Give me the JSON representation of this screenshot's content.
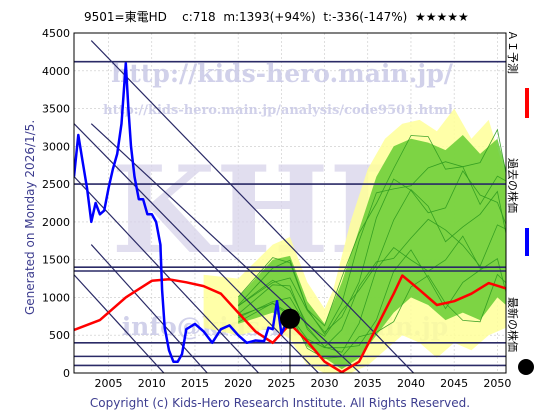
{
  "header": {
    "code_name": "9501=東電HD",
    "current": "c:718",
    "mid": "m:1393(+94%)",
    "target": "t:-336(-147%)",
    "stars": "★★★★★"
  },
  "watermarks": {
    "url_main": "http://kids-hero.main.jp/",
    "url_analysis": "http://kids-hero.main.jp/analysis/code9501.html",
    "logo": "KHR",
    "info": "info@kids-hero.main.jp"
  },
  "side_label": "Generated on Monday 2026/1/5.",
  "footer": "Copyright (c) Kids-Hero Research Institute. All Rights Reserved.",
  "legend": {
    "ai_label": "ＡＩ予測",
    "past_label": "過去の株価",
    "latest_label": "最新の株価"
  },
  "colors": {
    "past_price": "#0000ff",
    "ai_forecast": "#ff0000",
    "forecast_band_outer": "#ffff99",
    "forecast_band_inner": "#66cc33",
    "trend_lines": "#2a2a66",
    "latest_marker": "#000000"
  },
  "chart_data": {
    "type": "line",
    "x_range": [
      2001,
      2051
    ],
    "y_range": [
      0,
      4500
    ],
    "x_ticks": [
      2005,
      2010,
      2015,
      2020,
      2025,
      2030,
      2035,
      2040,
      2045,
      2050
    ],
    "y_ticks": [
      0,
      500,
      1000,
      1500,
      2000,
      2500,
      3000,
      3500,
      4000,
      4500
    ],
    "grid": true,
    "horizontal_levels": [
      4120,
      2500,
      1400,
      1350,
      400,
      220,
      100
    ],
    "latest_point": {
      "x": 2026.0,
      "y": 718
    },
    "series": [
      {
        "name": "過去の株価",
        "x": [
          2001.0,
          2001.5,
          2002.0,
          2002.5,
          2003.0,
          2003.5,
          2004.0,
          2004.5,
          2005.0,
          2005.5,
          2006.0,
          2006.5,
          2007.0,
          2007.3,
          2007.6,
          2008.0,
          2008.5,
          2009.0,
          2009.5,
          2010.0,
          2010.5,
          2011.0,
          2011.2,
          2011.5,
          2012.0,
          2012.5,
          2013.0,
          2013.5,
          2014.0,
          2015.0,
          2016.0,
          2017.0,
          2018.0,
          2019.0,
          2020.0,
          2021.0,
          2022.0,
          2023.0,
          2023.5,
          2024.0,
          2024.5,
          2025.0,
          2025.5,
          2026.0
        ],
        "y": [
          2600,
          3150,
          2800,
          2450,
          2000,
          2250,
          2100,
          2150,
          2450,
          2700,
          2900,
          3300,
          4100,
          3500,
          3000,
          2600,
          2300,
          2300,
          2100,
          2100,
          2000,
          1700,
          1100,
          600,
          300,
          150,
          150,
          250,
          580,
          650,
          550,
          400,
          580,
          630,
          500,
          400,
          430,
          420,
          600,
          580,
          950,
          520,
          650,
          718
        ]
      },
      {
        "name": "ＡＩ予測",
        "x": [
          2001,
          2004,
          2007,
          2010,
          2012,
          2014,
          2016,
          2018,
          2020,
          2022,
          2024,
          2026,
          2028,
          2030,
          2032,
          2034,
          2036,
          2038,
          2039,
          2041,
          2043,
          2045,
          2047,
          2049,
          2051
        ],
        "y": [
          570,
          700,
          1000,
          1220,
          1240,
          1200,
          1150,
          1050,
          800,
          550,
          400,
          650,
          420,
          150,
          10,
          150,
          600,
          1050,
          1290,
          1100,
          900,
          950,
          1050,
          1190,
          1120
        ]
      },
      {
        "name": "forecast_band_outer",
        "x": [
          2016,
          2020,
          2024,
          2026,
          2028,
          2030,
          2031,
          2033,
          2035,
          2037,
          2039,
          2041,
          2043,
          2045,
          2047,
          2049,
          2051
        ],
        "upper": [
          1300,
          1250,
          1700,
          1800,
          1200,
          850,
          1100,
          2000,
          2700,
          3100,
          3300,
          3350,
          3200,
          3500,
          3100,
          3350,
          2600
        ],
        "lower": [
          600,
          500,
          600,
          450,
          100,
          0,
          0,
          0,
          100,
          300,
          500,
          400,
          200,
          400,
          300,
          500,
          600
        ]
      },
      {
        "name": "forecast_band_inner",
        "x": [
          2020,
          2024,
          2026,
          2028,
          2030,
          2032,
          2034,
          2036,
          2038,
          2040,
          2042,
          2044,
          2046,
          2048,
          2050,
          2051
        ],
        "upper": [
          1000,
          1500,
          1550,
          950,
          650,
          1200,
          1900,
          2600,
          3000,
          3100,
          3050,
          2950,
          3150,
          2900,
          3100,
          2700
        ],
        "lower": [
          650,
          800,
          700,
          350,
          200,
          50,
          200,
          500,
          800,
          1000,
          900,
          700,
          800,
          700,
          1000,
          900
        ]
      }
    ]
  }
}
